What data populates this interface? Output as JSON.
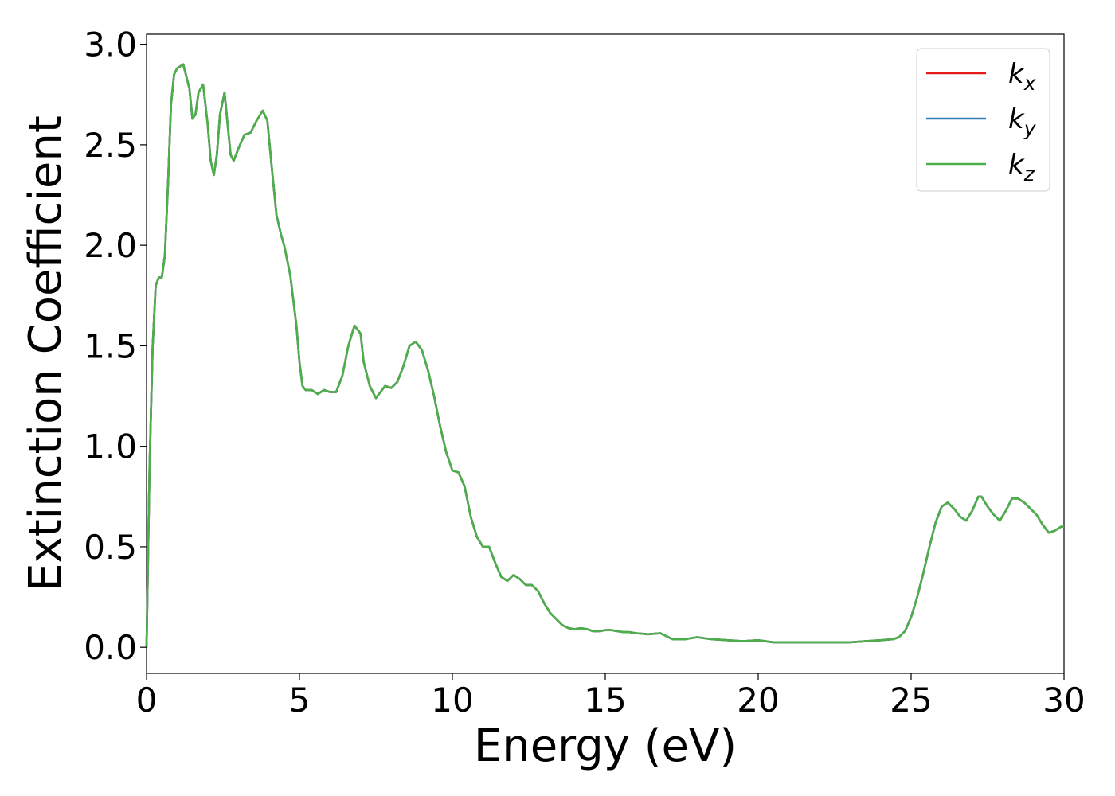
{
  "chart_data": {
    "type": "line",
    "xlabel": "Energy (eV)",
    "ylabel": "Extinction Coefficient",
    "xlim": [
      0,
      30
    ],
    "ylim": [
      -0.13,
      3.05
    ],
    "x_ticks": [
      "0",
      "5",
      "10",
      "15",
      "20",
      "25",
      "30"
    ],
    "y_ticks": [
      "0.0",
      "0.5",
      "1.0",
      "1.5",
      "2.0",
      "2.5",
      "3.0"
    ],
    "legend_position": "top-right",
    "grid": false,
    "series": [
      {
        "name": "k",
        "subscript": "x",
        "color": "#e41a1c"
      },
      {
        "name": "k",
        "subscript": "y",
        "color": "#377eb8"
      },
      {
        "name": "k",
        "subscript": "z",
        "color": "#4daf4a"
      }
    ],
    "x": [
      0,
      0.1,
      0.2,
      0.3,
      0.4,
      0.5,
      0.6,
      0.7,
      0.8,
      0.9,
      1.0,
      1.2,
      1.4,
      1.5,
      1.6,
      1.7,
      1.85,
      2.0,
      2.1,
      2.2,
      2.3,
      2.4,
      2.55,
      2.65,
      2.75,
      2.85,
      3.0,
      3.2,
      3.4,
      3.6,
      3.8,
      3.95,
      4.1,
      4.25,
      4.4,
      4.5,
      4.7,
      4.9,
      5.0,
      5.1,
      5.2,
      5.3,
      5.4,
      5.6,
      5.8,
      6.0,
      6.2,
      6.4,
      6.6,
      6.8,
      7.0,
      7.1,
      7.3,
      7.5,
      7.7,
      7.8,
      8.0,
      8.2,
      8.4,
      8.6,
      8.8,
      9.0,
      9.2,
      9.4,
      9.6,
      9.8,
      10.0,
      10.2,
      10.4,
      10.6,
      10.8,
      11.0,
      11.2,
      11.4,
      11.6,
      11.8,
      12.0,
      12.2,
      12.4,
      12.6,
      12.8,
      13.0,
      13.2,
      13.4,
      13.6,
      13.8,
      14.0,
      14.2,
      14.4,
      14.6,
      14.8,
      15.0,
      15.2,
      15.4,
      15.6,
      15.8,
      16.0,
      16.4,
      16.8,
      17.2,
      17.6,
      18.0,
      18.5,
      19.0,
      19.5,
      20.0,
      20.5,
      21.0,
      21.5,
      22.0,
      22.5,
      23.0,
      23.5,
      24.0,
      24.4,
      24.6,
      24.8,
      25.0,
      25.2,
      25.4,
      25.6,
      25.8,
      26.0,
      26.2,
      26.4,
      26.6,
      26.8,
      27.0,
      27.2,
      27.3,
      27.5,
      27.7,
      27.9,
      28.1,
      28.3,
      28.5,
      28.7,
      28.9,
      29.1,
      29.3,
      29.5,
      29.7,
      29.9,
      30.0
    ],
    "y": [
      0.0,
      0.9,
      1.5,
      1.8,
      1.84,
      1.84,
      1.95,
      2.3,
      2.7,
      2.85,
      2.88,
      2.9,
      2.78,
      2.63,
      2.65,
      2.76,
      2.8,
      2.6,
      2.42,
      2.35,
      2.45,
      2.65,
      2.76,
      2.6,
      2.45,
      2.42,
      2.48,
      2.55,
      2.56,
      2.62,
      2.67,
      2.62,
      2.38,
      2.15,
      2.05,
      2.0,
      1.85,
      1.6,
      1.42,
      1.3,
      1.28,
      1.28,
      1.28,
      1.26,
      1.28,
      1.27,
      1.27,
      1.35,
      1.5,
      1.6,
      1.56,
      1.42,
      1.3,
      1.24,
      1.28,
      1.3,
      1.29,
      1.32,
      1.4,
      1.5,
      1.52,
      1.48,
      1.38,
      1.25,
      1.1,
      0.97,
      0.88,
      0.87,
      0.8,
      0.65,
      0.55,
      0.5,
      0.5,
      0.42,
      0.35,
      0.33,
      0.36,
      0.34,
      0.31,
      0.31,
      0.28,
      0.22,
      0.17,
      0.14,
      0.11,
      0.095,
      0.09,
      0.095,
      0.09,
      0.08,
      0.08,
      0.085,
      0.085,
      0.08,
      0.075,
      0.075,
      0.07,
      0.065,
      0.07,
      0.04,
      0.04,
      0.05,
      0.04,
      0.035,
      0.03,
      0.035,
      0.025,
      0.025,
      0.025,
      0.025,
      0.025,
      0.025,
      0.03,
      0.035,
      0.04,
      0.05,
      0.08,
      0.15,
      0.25,
      0.37,
      0.5,
      0.62,
      0.7,
      0.72,
      0.69,
      0.65,
      0.63,
      0.68,
      0.75,
      0.75,
      0.7,
      0.66,
      0.63,
      0.68,
      0.74,
      0.74,
      0.72,
      0.69,
      0.66,
      0.61,
      0.57,
      0.58,
      0.6,
      0.6
    ]
  }
}
